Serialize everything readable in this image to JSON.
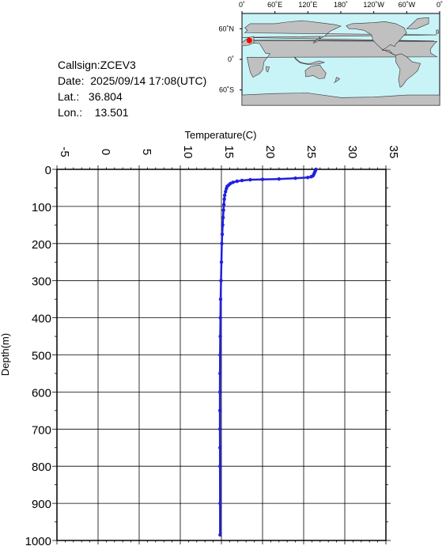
{
  "info": {
    "callsign": "Callsign:ZCEV3",
    "date": "Date:  2025/09/14 17:08(UTC)",
    "lat": "Lat.:   36.804",
    "lon": "Lon.:    13.501"
  },
  "map": {
    "ocean_color": "#c8f4f8",
    "land_color": "#c0c0c0",
    "marker_color": "#ff0000",
    "lon_labels": [
      "0˚",
      "60˚E",
      "120˚E",
      "180˚",
      "120˚W",
      "60˚W",
      "0˚"
    ],
    "lat_labels": [
      "60˚N",
      "0˚",
      "60˚S"
    ],
    "marker": {
      "lat": 36.804,
      "lon": 13.501
    }
  },
  "chart_data": {
    "type": "line",
    "title": "",
    "xlabel": "Temperature(C)",
    "ylabel": "Depth(m)",
    "xlim": [
      -5,
      35
    ],
    "ylim": [
      0,
      1000
    ],
    "x_ticks": [
      "-5",
      "0",
      "5",
      "10",
      "15",
      "20",
      "25",
      "30",
      "35"
    ],
    "y_ticks": [
      "0",
      "100",
      "200",
      "300",
      "400",
      "500",
      "600",
      "700",
      "800",
      "900",
      "1000"
    ],
    "grid": true,
    "line_color": "#2020e0",
    "series": [
      {
        "x": [
          26.5,
          26.4,
          26.3,
          26.2,
          26.1,
          25.9,
          25.5,
          24.0,
          22.0,
          20.0,
          18.5,
          17.5,
          16.9,
          16.4,
          16.1,
          15.9,
          15.7,
          15.6,
          15.5,
          15.4,
          15.35,
          15.3,
          15.25,
          15.2,
          15.15,
          15.1,
          15.05,
          15.0,
          14.95,
          14.9,
          14.88,
          14.86,
          14.84,
          14.83,
          14.82,
          14.82,
          14.82,
          14.83,
          14.83,
          14.84,
          14.84
        ],
        "y": [
          0,
          5,
          10,
          15,
          18,
          20,
          22,
          24,
          26,
          27,
          28,
          30,
          32,
          35,
          38,
          42,
          46,
          52,
          60,
          70,
          80,
          95,
          110,
          130,
          150,
          175,
          200,
          250,
          300,
          350,
          400,
          450,
          500,
          550,
          600,
          650,
          700,
          750,
          800,
          900,
          985
        ]
      }
    ]
  }
}
